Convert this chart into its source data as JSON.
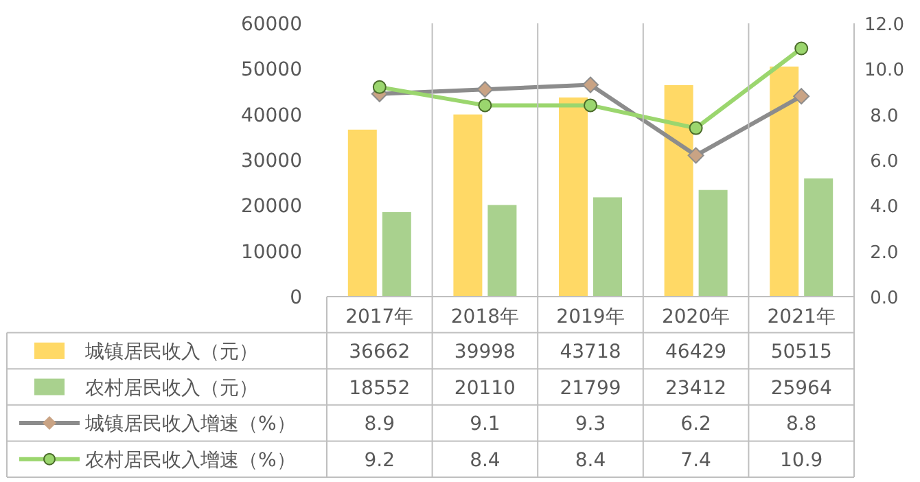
{
  "chart_data": {
    "type": "bar",
    "categories": [
      "2017年",
      "2018年",
      "2019年",
      "2020年",
      "2021年"
    ],
    "series": [
      {
        "name": "城镇居民收入（元）",
        "color": "#ffd966",
        "values": [
          36662,
          39998,
          43718,
          46429,
          50515
        ]
      },
      {
        "name": "农村居民收入（元）",
        "color": "#a9d18e",
        "values": [
          18552,
          20110,
          21799,
          23412,
          25964
        ]
      },
      {
        "name": "城镇居民收入增速（%）",
        "type": "line",
        "axis": "y2",
        "marker": "diamond",
        "color": "#8c8c8c",
        "values": [
          8.9,
          9.1,
          9.3,
          6.2,
          8.8
        ]
      },
      {
        "name": "农村居民收入增速（%）",
        "type": "line",
        "axis": "y2",
        "marker": "circle",
        "color": "#9bd66e",
        "values": [
          9.2,
          8.4,
          8.4,
          7.4,
          10.9
        ]
      }
    ],
    "ylim": [
      0,
      60000
    ],
    "yticks": [
      0,
      10000,
      20000,
      30000,
      40000,
      50000,
      60000
    ],
    "y2lim": [
      0,
      12
    ],
    "y2ticks": [
      {
        "value": 0,
        "label": "0.0"
      },
      {
        "value": 2,
        "label": "2.0"
      },
      {
        "value": 4,
        "label": "4.0"
      },
      {
        "value": 6,
        "label": "6.0"
      },
      {
        "value": 8,
        "label": "8.0"
      },
      {
        "value": 10,
        "label": "10.0"
      },
      {
        "value": 12,
        "label": "12.0"
      }
    ],
    "data_labels": true,
    "legend": "bottom",
    "grid": false
  }
}
